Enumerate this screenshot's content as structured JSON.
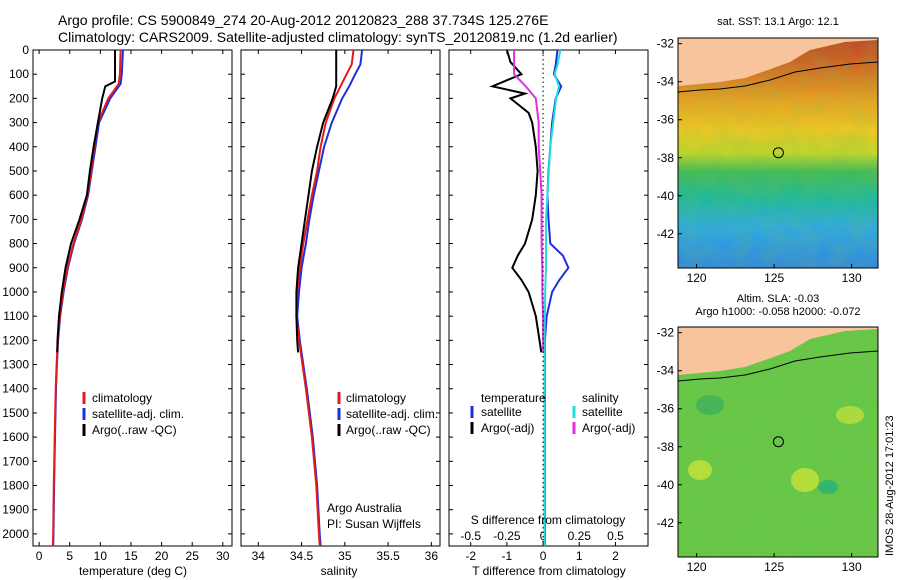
{
  "header": {
    "line1": "Argo profile: CS 5900849_274 20-Aug-2012 20120823_288 37.734S 125.276E",
    "line2": "Climatology: CARS2009. Satellite-adjusted climatology: synTS_20120819.nc (1.2d earlier)"
  },
  "colors": {
    "climatology": "#e41a1c",
    "satellite": "#1f2fd8",
    "argo": "#000000",
    "sat_salinity": "#22dde0",
    "argo_salinity": "#e030e0",
    "land": "#f7c49c"
  },
  "chart_data": [
    {
      "type": "line",
      "name": "temperature",
      "xlabel": "temperature (deg C)",
      "ylabel": "",
      "xlim": [
        -1,
        31.5
      ],
      "ylim": [
        2050,
        0
      ],
      "xticks": [
        0,
        5,
        10,
        15,
        20,
        25,
        30
      ],
      "yticks": [
        0,
        100,
        200,
        300,
        400,
        500,
        600,
        700,
        800,
        900,
        1000,
        1100,
        1200,
        1300,
        1400,
        1500,
        1600,
        1700,
        1800,
        1900,
        2000
      ],
      "legend": [
        "climatology",
        "satellite-adj. clim.",
        "Argo(..raw -QC)"
      ],
      "series": [
        {
          "name": "climatology",
          "depth": [
            0,
            100,
            140,
            200,
            300,
            400,
            500,
            600,
            700,
            800,
            900,
            1000,
            1100,
            1200,
            1300,
            1400,
            1600,
            1800,
            2000,
            2050
          ],
          "values": [
            13.3,
            13.2,
            13,
            11.3,
            9.6,
            9.0,
            8.5,
            7.9,
            6.9,
            5.6,
            4.6,
            3.9,
            3.4,
            3.05,
            2.85,
            2.7,
            2.55,
            2.4,
            2.3,
            2.25
          ]
        },
        {
          "name": "satellite-adj. clim.",
          "depth": [
            0,
            100,
            140,
            200,
            300,
            400,
            500,
            600,
            700,
            800,
            900,
            1000,
            1100,
            1200,
            1300,
            1400,
            1600,
            1800,
            2000,
            2050
          ],
          "values": [
            13.7,
            13.5,
            13.3,
            11.6,
            9.8,
            9.2,
            8.6,
            8.0,
            7.0,
            5.7,
            4.7,
            4.0,
            3.45,
            3.1,
            2.9,
            2.75,
            2.6,
            2.45,
            2.35,
            2.3
          ]
        },
        {
          "name": "Argo(..raw -QC)",
          "depth": [
            0,
            130,
            150,
            200,
            300,
            400,
            500,
            600,
            700,
            800,
            900,
            1000,
            1100,
            1200,
            1250
          ],
          "values": [
            12.4,
            12.4,
            10.8,
            10.3,
            9.6,
            8.9,
            8.3,
            7.8,
            6.6,
            5.2,
            4.3,
            3.7,
            3.25,
            3.0,
            2.95
          ]
        }
      ],
      "annotations": []
    },
    {
      "type": "line",
      "name": "salinity",
      "xlabel": "salinity",
      "xlim": [
        33.8,
        36.1
      ],
      "ylim": [
        2050,
        0
      ],
      "xticks": [
        34,
        34.5,
        35,
        35.5,
        36
      ],
      "legend": [
        "climatology",
        "satellite-adj. clim.",
        "Argo(..raw -QC)"
      ],
      "series": [
        {
          "name": "climatology",
          "depth": [
            0,
            60,
            100,
            150,
            200,
            300,
            400,
            500,
            600,
            700,
            800,
            900,
            1000,
            1100,
            1200,
            1400,
            1600,
            1800,
            2000,
            2050
          ],
          "values": [
            35.1,
            35.08,
            35.02,
            34.95,
            34.88,
            34.78,
            34.72,
            34.68,
            34.62,
            34.57,
            34.52,
            34.48,
            34.45,
            34.44,
            34.47,
            34.55,
            34.62,
            34.67,
            34.7,
            34.71
          ]
        },
        {
          "name": "satellite-adj. clim.",
          "depth": [
            0,
            60,
            100,
            150,
            200,
            300,
            400,
            500,
            600,
            700,
            800,
            900,
            1000,
            1100,
            1200,
            1400,
            1600,
            1800,
            2000,
            2050
          ],
          "values": [
            35.2,
            35.18,
            35.12,
            35.05,
            34.97,
            34.85,
            34.76,
            34.7,
            34.64,
            34.59,
            34.55,
            34.5,
            34.47,
            34.45,
            34.48,
            34.56,
            34.63,
            34.68,
            34.71,
            34.72
          ]
        },
        {
          "name": "Argo(..raw -QC)",
          "depth": [
            0,
            150,
            200,
            300,
            400,
            500,
            600,
            700,
            800,
            900,
            1000,
            1100,
            1200,
            1250
          ],
          "values": [
            34.9,
            34.9,
            34.86,
            34.75,
            34.68,
            34.62,
            34.58,
            34.54,
            34.5,
            34.46,
            34.44,
            34.44,
            34.45,
            34.46
          ]
        }
      ],
      "annotations": [
        "Argo Australia",
        "PI: Susan Wijffels"
      ]
    },
    {
      "type": "line",
      "name": "differences",
      "xlabel": "T difference from climatology",
      "top_xlabel": "S difference from climatology",
      "xlim": [
        -2.6,
        2.9
      ],
      "ylim": [
        2050,
        0
      ],
      "xticks": [
        -2,
        -1,
        0,
        1,
        2
      ],
      "top_xticks": [
        -0.5,
        -0.25,
        0,
        0.25,
        0.5
      ],
      "top_xlim": [
        -0.65,
        0.725
      ],
      "legend": {
        "temperature_title": "temperature",
        "salinity_title": "salinity",
        "temperature": [
          "satellite",
          "Argo(-adj)"
        ],
        "salinity": [
          "satellite",
          "Argo(-adj)"
        ]
      },
      "series": [
        {
          "name": "T satellite",
          "depth": [
            0,
            60,
            100,
            150,
            200,
            300,
            400,
            500,
            600,
            700,
            800,
            850,
            900,
            950,
            1000,
            1100,
            1200,
            1400,
            1600,
            1800,
            2000,
            2050
          ],
          "values": [
            0.4,
            0.35,
            0.3,
            0.5,
            0.35,
            0.25,
            0.2,
            0.15,
            0.12,
            0.15,
            0.2,
            0.55,
            0.7,
            0.45,
            0.25,
            0.1,
            0.05,
            0.05,
            0.05,
            0.05,
            0.05,
            0.05
          ]
        },
        {
          "name": "T Argo(-adj)",
          "depth": [
            0,
            50,
            100,
            150,
            180,
            200,
            260,
            300,
            400,
            500,
            600,
            700,
            800,
            850,
            900,
            950,
            1000,
            1100,
            1200,
            1250
          ],
          "values": [
            -1.0,
            -0.9,
            -0.6,
            -1.4,
            -0.5,
            -0.9,
            -0.4,
            -0.3,
            -0.2,
            -0.15,
            -0.2,
            -0.3,
            -0.5,
            -0.7,
            -0.85,
            -0.6,
            -0.4,
            -0.2,
            -0.1,
            -0.05
          ]
        },
        {
          "name": "S satellite",
          "depth": [
            0,
            60,
            100,
            150,
            200,
            300,
            400,
            500,
            600,
            700,
            800,
            900,
            1000,
            1200,
            1400,
            1600,
            1800,
            2000,
            2050
          ],
          "values": [
            0.12,
            0.1,
            0.08,
            0.11,
            0.09,
            0.07,
            0.05,
            0.04,
            0.03,
            0.02,
            0.02,
            0.02,
            0.015,
            0.01,
            0.01,
            0.01,
            0.01,
            0.01,
            0.01
          ]
        },
        {
          "name": "S Argo(-adj)",
          "depth": [
            0,
            100,
            150,
            200,
            300,
            400,
            500,
            600,
            700,
            800,
            900,
            1000,
            1100,
            1200,
            1250
          ],
          "values": [
            -0.2,
            -0.2,
            -0.12,
            -0.05,
            -0.03,
            -0.03,
            -0.02,
            -0.01,
            -0.01,
            -0.01,
            -0.005,
            -0.005,
            0,
            0,
            0
          ]
        }
      ]
    },
    {
      "type": "heatmap",
      "name": "sst_map",
      "title": "sat. SST: 13.1  Argo: 12.1",
      "xticks": [
        120,
        125,
        130
      ],
      "yticks": [
        -32,
        -34,
        -36,
        -38,
        -40,
        -42
      ],
      "xlim": [
        118.8,
        131.7
      ],
      "ylim": [
        -43.8,
        -31.7
      ],
      "marker": {
        "lon": 125.276,
        "lat": -37.734
      }
    },
    {
      "type": "heatmap",
      "name": "sla_map",
      "title": "Altim. SLA: -0.03",
      "subtitle": "Argo h1000: -0.058  h2000: -0.072",
      "xticks": [
        120,
        125,
        130
      ],
      "yticks": [
        -32,
        -34,
        -36,
        -38,
        -40,
        -42
      ],
      "xlim": [
        118.8,
        131.7
      ],
      "ylim": [
        -43.8,
        -31.7
      ],
      "marker": {
        "lon": 125.276,
        "lat": -37.734
      }
    }
  ],
  "footer": {
    "stamp": "IMOS 28-Aug-2012 17:01:23"
  }
}
